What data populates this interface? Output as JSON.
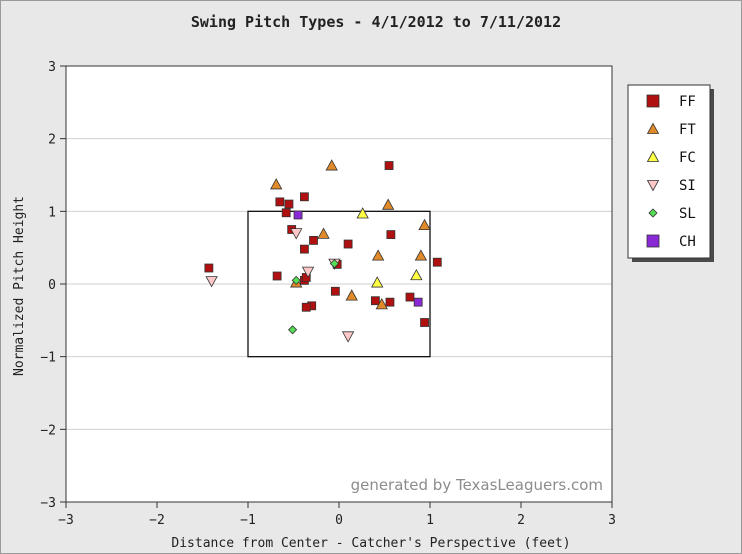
{
  "chart_data": {
    "type": "scatter",
    "title": "Swing Pitch Types - 4/1/2012 to 7/11/2012",
    "xlabel": "Distance from Center - Catcher's Perspective (feet)",
    "ylabel": "Normalized Pitch Height",
    "xlim": [
      -3,
      3
    ],
    "ylim": [
      -3,
      3
    ],
    "xticks": [
      "−3",
      "−2",
      "−1",
      "0",
      "1",
      "2",
      "3"
    ],
    "yticks": [
      "−3",
      "−2",
      "−1",
      "0",
      "1",
      "2",
      "3"
    ],
    "grid": "horizontal",
    "legend_position": "right",
    "strike_zone": {
      "x": [
        -1,
        1
      ],
      "y": [
        -1,
        1
      ]
    },
    "watermark": "generated by TexasLeaguers.com",
    "series": [
      {
        "name": "FF",
        "marker": "square",
        "color": "#b01010",
        "points": [
          [
            -0.55,
            1.1
          ],
          [
            -0.38,
            1.2
          ],
          [
            -0.65,
            1.13
          ],
          [
            -0.58,
            0.98
          ],
          [
            -0.52,
            0.75
          ],
          [
            -0.38,
            0.48
          ],
          [
            -0.28,
            0.6
          ],
          [
            0.1,
            0.55
          ],
          [
            0.57,
            0.68
          ],
          [
            0.55,
            1.63
          ],
          [
            1.08,
            0.3
          ],
          [
            -0.02,
            0.27
          ],
          [
            -0.68,
            0.11
          ],
          [
            -0.38,
            0.05
          ],
          [
            -0.36,
            0.09
          ],
          [
            -1.43,
            0.22
          ],
          [
            -0.3,
            -0.3
          ],
          [
            -0.36,
            -0.32
          ],
          [
            -0.04,
            -0.1
          ],
          [
            0.4,
            -0.23
          ],
          [
            0.56,
            -0.25
          ],
          [
            0.78,
            -0.18
          ],
          [
            0.94,
            -0.53
          ]
        ]
      },
      {
        "name": "FT",
        "marker": "triangle-up",
        "color": "#e08a2a",
        "points": [
          [
            -0.69,
            1.37
          ],
          [
            -0.08,
            1.63
          ],
          [
            0.54,
            1.09
          ],
          [
            0.94,
            0.81
          ],
          [
            0.9,
            0.39
          ],
          [
            0.43,
            0.39
          ],
          [
            -0.17,
            0.69
          ],
          [
            -0.47,
            0.02
          ],
          [
            0.14,
            -0.16
          ],
          [
            0.47,
            -0.28
          ]
        ]
      },
      {
        "name": "FC",
        "marker": "triangle-up",
        "color": "#ffff44",
        "points": [
          [
            0.26,
            0.97
          ],
          [
            0.42,
            0.02
          ],
          [
            0.85,
            0.12
          ]
        ]
      },
      {
        "name": "SI",
        "marker": "triangle-down",
        "color": "#ffc8c8",
        "points": [
          [
            -0.47,
            0.7
          ],
          [
            -0.34,
            0.17
          ],
          [
            -0.05,
            0.28
          ],
          [
            0.1,
            -0.72
          ],
          [
            -1.4,
            0.04
          ]
        ]
      },
      {
        "name": "SL",
        "marker": "diamond",
        "color": "#55dd55",
        "points": [
          [
            -0.47,
            0.05
          ],
          [
            -0.05,
            0.28
          ],
          [
            -0.51,
            -0.63
          ]
        ]
      },
      {
        "name": "CH",
        "marker": "square",
        "color": "#8a2ad6",
        "points": [
          [
            -0.45,
            0.95
          ],
          [
            0.87,
            -0.25
          ]
        ]
      }
    ]
  }
}
